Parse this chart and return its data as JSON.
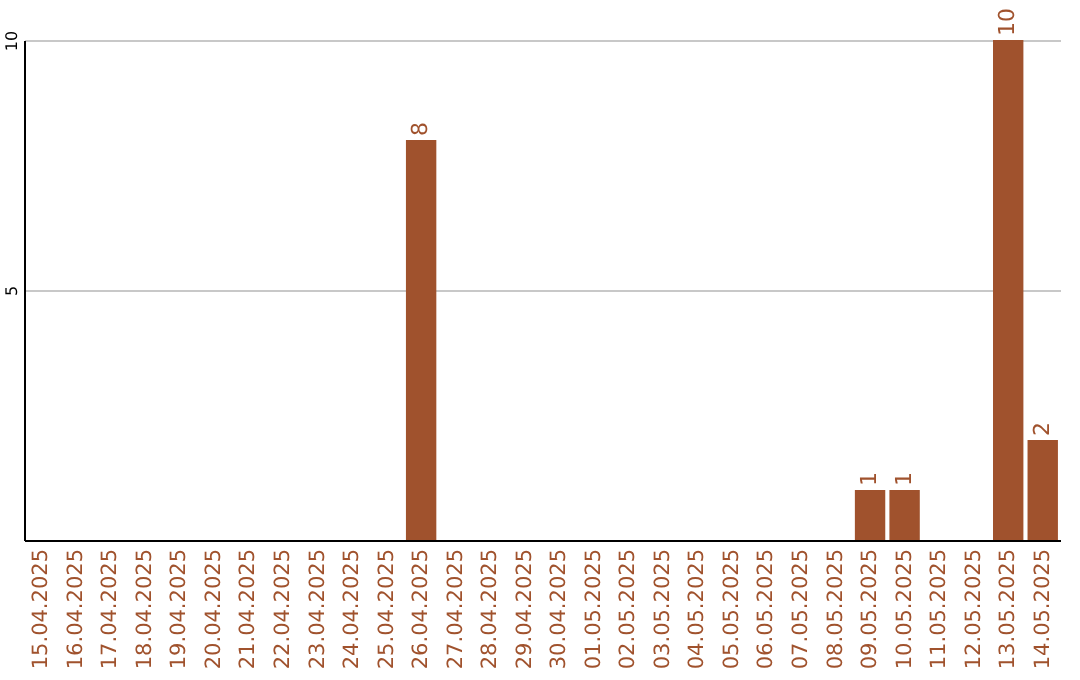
{
  "chart_data": {
    "type": "bar",
    "categories": [
      "15.04.2025",
      "16.04.2025",
      "17.04.2025",
      "18.04.2025",
      "19.04.2025",
      "20.04.2025",
      "21.04.2025",
      "22.04.2025",
      "23.04.2025",
      "24.04.2025",
      "25.04.2025",
      "26.04.2025",
      "27.04.2025",
      "28.04.2025",
      "29.04.2025",
      "30.04.2025",
      "01.05.2025",
      "02.05.2025",
      "03.05.2025",
      "04.05.2025",
      "05.05.2025",
      "06.05.2025",
      "07.05.2025",
      "08.05.2025",
      "09.05.2025",
      "10.05.2025",
      "11.05.2025",
      "12.05.2025",
      "13.05.2025",
      "14.05.2025"
    ],
    "values": [
      0,
      0,
      0,
      0,
      0,
      0,
      0,
      0,
      0,
      0,
      0,
      8,
      0,
      0,
      0,
      0,
      0,
      0,
      0,
      0,
      0,
      0,
      0,
      0,
      1,
      1,
      0,
      0,
      10,
      2
    ],
    "value_labels": [
      null,
      null,
      null,
      null,
      null,
      null,
      null,
      null,
      null,
      null,
      null,
      "8",
      null,
      null,
      null,
      null,
      null,
      null,
      null,
      null,
      null,
      null,
      null,
      null,
      "1",
      "1",
      null,
      null,
      "10",
      "2"
    ],
    "color": "#a0522d",
    "ylim": [
      0,
      10
    ],
    "yticks": [
      5,
      10
    ],
    "grid": "y"
  }
}
